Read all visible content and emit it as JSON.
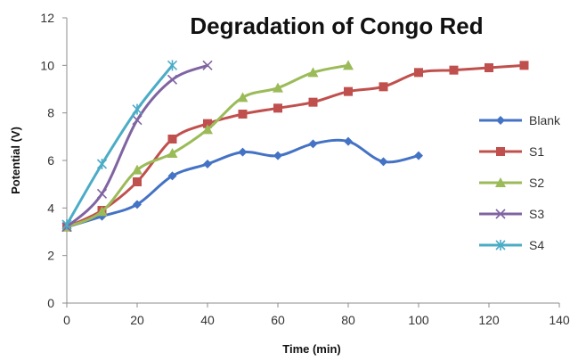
{
  "chart_data": {
    "type": "line",
    "title": "Degradation of Congo Red",
    "xlabel": "Time (min)",
    "ylabel": "Potential (V)",
    "xlim": [
      0,
      140
    ],
    "ylim": [
      0,
      12
    ],
    "x_ticks": [
      0,
      20,
      40,
      60,
      80,
      100,
      120,
      140
    ],
    "y_ticks": [
      0,
      2,
      4,
      6,
      8,
      10,
      12
    ],
    "grid": false,
    "legend_position": "right",
    "series": [
      {
        "name": "Blank",
        "color": "#4472C4",
        "marker": "diamond",
        "x": [
          0,
          10,
          20,
          30,
          40,
          50,
          60,
          70,
          80,
          90,
          100
        ],
        "y": [
          3.2,
          3.65,
          4.15,
          5.35,
          5.85,
          6.35,
          6.2,
          6.7,
          6.8,
          5.95,
          6.2
        ]
      },
      {
        "name": "S1",
        "color": "#C0504D",
        "marker": "square",
        "x": [
          0,
          10,
          20,
          30,
          40,
          50,
          60,
          70,
          80,
          90,
          100,
          110,
          120,
          130
        ],
        "y": [
          3.2,
          3.9,
          5.1,
          6.9,
          7.55,
          7.95,
          8.2,
          8.45,
          8.9,
          9.1,
          9.7,
          9.8,
          9.9,
          10.0
        ]
      },
      {
        "name": "S2",
        "color": "#9BBB59",
        "marker": "triangle",
        "x": [
          0,
          10,
          20,
          30,
          40,
          50,
          60,
          70,
          80
        ],
        "y": [
          3.2,
          3.85,
          5.6,
          6.3,
          7.3,
          8.65,
          9.05,
          9.7,
          10.0
        ]
      },
      {
        "name": "S3",
        "color": "#8064A2",
        "marker": "x",
        "x": [
          0,
          10,
          20,
          30,
          40
        ],
        "y": [
          3.2,
          4.6,
          7.7,
          9.4,
          10.0
        ]
      },
      {
        "name": "S4",
        "color": "#4BACC6",
        "marker": "star",
        "x": [
          0,
          10,
          20,
          30
        ],
        "y": [
          3.3,
          5.85,
          8.15,
          10.0
        ]
      }
    ]
  }
}
